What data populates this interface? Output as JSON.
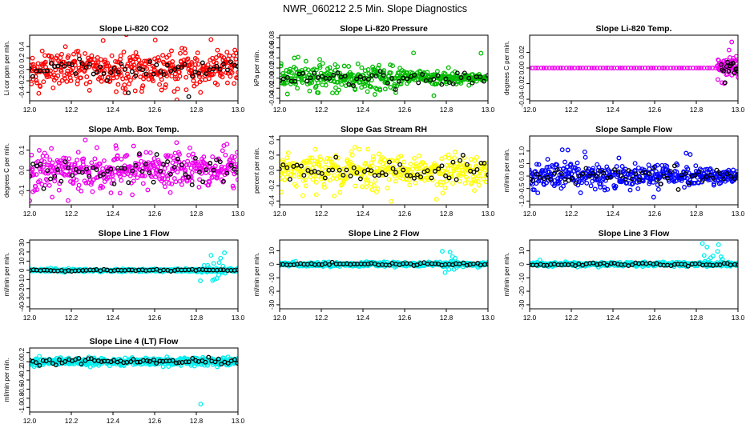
{
  "page_title": "NWR_060212  2.5 Min. Slope Diagnostics",
  "chart_data": [
    {
      "type": "scatter",
      "title": "Slope Li-820 CO2",
      "ylabel": "Li cor ppm per min.",
      "xlim": [
        12.0,
        13.0
      ],
      "ylim": [
        -0.55,
        0.6
      ],
      "yticks": [
        -0.4,
        -0.2,
        0.0,
        0.2,
        0.4
      ],
      "ytick_labels": [
        "-0.4",
        "-0.2",
        "0.0",
        "0.2",
        "0.4"
      ],
      "xticks": [
        12.0,
        12.2,
        12.4,
        12.6,
        12.8,
        13.0
      ],
      "xtick_labels": [
        "12.0",
        "12.2",
        "12.4",
        "12.6",
        "12.8",
        "13.0"
      ],
      "series": [
        {
          "name": "primary",
          "color": "#ff0000",
          "n": 420,
          "spread": 0.32,
          "outlier_rate": 0.02,
          "outlier_spread": 0.55
        },
        {
          "name": "reference",
          "color": "#000000",
          "n": 60,
          "spread": 0.15,
          "outlier_rate": 0.05,
          "outlier_spread": 0.5
        }
      ]
    },
    {
      "type": "scatter",
      "title": "Slope Li-820 Pressure",
      "ylabel": "kPa per min.",
      "xlim": [
        12.0,
        13.0
      ],
      "ylim": [
        -0.045,
        0.085
      ],
      "yticks": [
        -0.04,
        -0.02,
        0.0,
        0.02,
        0.04,
        0.06,
        0.08
      ],
      "ytick_labels": [
        "-0.04",
        "-0.02",
        "0.00",
        "0.02",
        "0.04",
        "0.06",
        "0.08"
      ],
      "xticks": [
        12.0,
        12.2,
        12.4,
        12.6,
        12.8,
        13.0
      ],
      "xtick_labels": [
        "12.0",
        "12.2",
        "12.4",
        "12.6",
        "12.8",
        "13.0"
      ],
      "series": [
        {
          "name": "primary",
          "color": "#00bb00",
          "n": 420,
          "spread": 0.03,
          "taper": 0.85,
          "outlier_rate": 0.03,
          "outlier_spread": 0.06
        },
        {
          "name": "reference",
          "color": "#000000",
          "n": 55,
          "spread": 0.012,
          "outlier_rate": 0.05,
          "outlier_spread": 0.03
        }
      ]
    },
    {
      "type": "scatter",
      "title": "Slope Li-820 Temp.",
      "ylabel": "degrees C per min.",
      "xlim": [
        12.0,
        13.0
      ],
      "ylim": [
        -0.042,
        0.042
      ],
      "yticks": [
        -0.04,
        -0.02,
        0.0,
        0.02
      ],
      "ytick_labels": [
        "-0.04",
        "-0.02",
        "0.00",
        "0.02"
      ],
      "xticks": [
        12.0,
        12.2,
        12.4,
        12.6,
        12.8,
        13.0
      ],
      "xtick_labels": [
        "12.0",
        "12.2",
        "12.4",
        "12.6",
        "12.8",
        "13.0"
      ],
      "series": [
        {
          "name": "primary",
          "color": "#ee00ee",
          "n": 75,
          "spread": 0.0,
          "outlier_rate": 0.0,
          "outlier_spread": 0.0
        },
        {
          "name": "late",
          "color": "#ee00ee",
          "n": 55,
          "spread": 0.012,
          "xrange": [
            12.9,
            13.0
          ],
          "outlier_rate": 0.15,
          "outlier_spread": 0.035
        },
        {
          "name": "reference",
          "color": "#000000",
          "n": 14,
          "spread": 0.01,
          "xrange": [
            12.92,
            13.0
          ],
          "outlier_rate": 0.0,
          "outlier_spread": 0.0
        }
      ]
    },
    {
      "type": "scatter",
      "title": "Slope Amb. Box Temp.",
      "ylabel": "degrees C per min.",
      "xlim": [
        12.0,
        13.0
      ],
      "ylim": [
        -0.17,
        0.17
      ],
      "yticks": [
        -0.1,
        0.0,
        0.1
      ],
      "ytick_labels": [
        "-0.1",
        "0.0",
        "0.1"
      ],
      "xticks": [
        12.0,
        12.2,
        12.4,
        12.6,
        12.8,
        13.0
      ],
      "xtick_labels": [
        "12.0",
        "12.2",
        "12.4",
        "12.6",
        "12.8",
        "13.0"
      ],
      "series": [
        {
          "name": "primary",
          "color": "#ee00ee",
          "n": 420,
          "spread": 0.09,
          "outlier_rate": 0.03,
          "outlier_spread": 0.15
        },
        {
          "name": "reference",
          "color": "#000000",
          "n": 60,
          "spread": 0.06,
          "outlier_rate": 0.03,
          "outlier_spread": 0.1
        }
      ]
    },
    {
      "type": "scatter",
      "title": "Slope Gas Stream RH",
      "ylabel": "percent per min.",
      "xlim": [
        12.0,
        13.0
      ],
      "ylim": [
        -0.45,
        0.45
      ],
      "yticks": [
        -0.4,
        -0.2,
        0.0,
        0.2,
        0.4
      ],
      "ytick_labels": [
        "-0.4",
        "-0.2",
        "0.0",
        "0.2",
        "0.4"
      ],
      "xticks": [
        12.0,
        12.2,
        12.4,
        12.6,
        12.8,
        13.0
      ],
      "xtick_labels": [
        "12.0",
        "12.2",
        "12.4",
        "12.6",
        "12.8",
        "13.0"
      ],
      "series": [
        {
          "name": "primary",
          "color": "#ffff00",
          "n": 400,
          "spread": 0.22,
          "outlier_rate": 0.03,
          "outlier_spread": 0.42
        },
        {
          "name": "reference",
          "color": "#000000",
          "n": 60,
          "spread": 0.15,
          "outlier_rate": 0.03,
          "outlier_spread": 0.25
        }
      ]
    },
    {
      "type": "scatter",
      "title": "Slope Sample Flow",
      "ylabel": "ml/min per min.",
      "xlim": [
        12.0,
        13.0
      ],
      "ylim": [
        -1.15,
        1.6
      ],
      "yticks": [
        -1.0,
        -0.5,
        0.0,
        0.5,
        1.0
      ],
      "ytick_labels": [
        "-1.0",
        "-0.5",
        "0.0",
        "0.5",
        "1.0"
      ],
      "xticks": [
        12.0,
        12.2,
        12.4,
        12.6,
        12.8,
        13.0
      ],
      "xtick_labels": [
        "12.0",
        "12.2",
        "12.4",
        "12.6",
        "12.8",
        "13.0"
      ],
      "series": [
        {
          "name": "primary",
          "color": "#0000ff",
          "n": 420,
          "spread": 0.55,
          "taper": 0.5,
          "outlier_rate": 0.03,
          "outlier_spread": 1.1
        },
        {
          "name": "reference",
          "color": "#000000",
          "n": 60,
          "spread": 0.35,
          "outlier_rate": 0.03,
          "outlier_spread": 0.9
        }
      ]
    },
    {
      "type": "scatter",
      "title": "Slope Line 1 Flow",
      "ylabel": "ml/min per min.",
      "xlim": [
        12.0,
        13.0
      ],
      "ylim": [
        -42,
        33
      ],
      "yticks": [
        -40,
        -30,
        -20,
        -10,
        0,
        10,
        20,
        30
      ],
      "ytick_labels": [
        "-40",
        "-30",
        "-20",
        "-10",
        "0",
        "10",
        "20",
        "30"
      ],
      "xticks": [
        12.0,
        12.2,
        12.4,
        12.6,
        12.8,
        13.0
      ],
      "xtick_labels": [
        "12.0",
        "12.2",
        "12.4",
        "12.6",
        "12.8",
        "13.0"
      ],
      "series": [
        {
          "name": "primary",
          "color": "#00eeee",
          "n": 420,
          "spread": 1.5,
          "outlier_rate": 0.0,
          "outlier_spread": 0.0
        },
        {
          "name": "spikes",
          "color": "#00eeee",
          "n": 22,
          "spread": 12,
          "xrange": [
            12.82,
            12.94
          ],
          "outlier_rate": 0.3,
          "outlier_spread": 28
        },
        {
          "name": "reference",
          "color": "#000000",
          "n": 60,
          "spread": 1.0,
          "outlier_rate": 0.0,
          "outlier_spread": 0.0
        }
      ]
    },
    {
      "type": "scatter",
      "title": "Slope Line 2 Flow",
      "ylabel": "ml/min per min.",
      "xlim": [
        12.0,
        13.0
      ],
      "ylim": [
        -33,
        18
      ],
      "yticks": [
        -30,
        -20,
        -10,
        0,
        10
      ],
      "ytick_labels": [
        "-30",
        "-20",
        "-10",
        "0",
        "10"
      ],
      "xticks": [
        12.0,
        12.2,
        12.4,
        12.6,
        12.8,
        13.0
      ],
      "xtick_labels": [
        "12.0",
        "12.2",
        "12.4",
        "12.6",
        "12.8",
        "13.0"
      ],
      "series": [
        {
          "name": "primary",
          "color": "#00eeee",
          "n": 420,
          "spread": 1.5,
          "outlier_rate": 0.0,
          "outlier_spread": 0.0
        },
        {
          "name": "spikes",
          "color": "#00eeee",
          "n": 14,
          "spread": 8,
          "xrange": [
            12.78,
            12.86
          ],
          "outlier_rate": 0.2,
          "outlier_spread": 16
        },
        {
          "name": "reference",
          "color": "#000000",
          "n": 60,
          "spread": 1.2,
          "outlier_rate": 0.0,
          "outlier_spread": 0.0
        }
      ]
    },
    {
      "type": "scatter",
      "title": "Slope Line 3 Flow",
      "ylabel": "ml/min per min.",
      "xlim": [
        12.0,
        13.0
      ],
      "ylim": [
        -33,
        18
      ],
      "yticks": [
        -30,
        -20,
        -10,
        0,
        10
      ],
      "ytick_labels": [
        "-30",
        "-20",
        "-10",
        "0",
        "10"
      ],
      "xticks": [
        12.0,
        12.2,
        12.4,
        12.6,
        12.8,
        13.0
      ],
      "xtick_labels": [
        "12.0",
        "12.2",
        "12.4",
        "12.6",
        "12.8",
        "13.0"
      ],
      "series": [
        {
          "name": "primary",
          "color": "#00eeee",
          "n": 420,
          "spread": 1.5,
          "outlier_rate": 0.0,
          "outlier_spread": 0.0
        },
        {
          "name": "spikes",
          "color": "#00eeee",
          "n": 18,
          "spread": 9,
          "xrange": [
            12.83,
            12.94
          ],
          "outlier_rate": 0.3,
          "outlier_spread": 16
        },
        {
          "name": "reference",
          "color": "#000000",
          "n": 60,
          "spread": 1.2,
          "outlier_rate": 0.0,
          "outlier_spread": 0.0
        }
      ]
    },
    {
      "type": "scatter",
      "title": "Slope Line 4 (LT) Flow",
      "ylabel": "ml/min per min.",
      "xlim": [
        12.0,
        13.0
      ],
      "ylim": [
        -1.1,
        0.3
      ],
      "yticks": [
        -1.0,
        -0.8,
        -0.6,
        -0.4,
        -0.2,
        0.0,
        0.2
      ],
      "ytick_labels": [
        "-1.0",
        "-0.8",
        "-0.6",
        "-0.4",
        "-0.2",
        "0.0",
        "0.2"
      ],
      "xticks": [
        12.0,
        12.2,
        12.4,
        12.6,
        12.8,
        13.0
      ],
      "xtick_labels": [
        "12.0",
        "12.2",
        "12.4",
        "12.6",
        "12.8",
        "13.0"
      ],
      "series": [
        {
          "name": "primary",
          "color": "#00eeee",
          "n": 440,
          "spread": 0.09,
          "outlier_rate": 0.01,
          "outlier_spread": 0.95
        },
        {
          "name": "reference",
          "color": "#000000",
          "n": 65,
          "spread": 0.07,
          "outlier_rate": 0.0,
          "outlier_spread": 0.0
        }
      ]
    }
  ]
}
